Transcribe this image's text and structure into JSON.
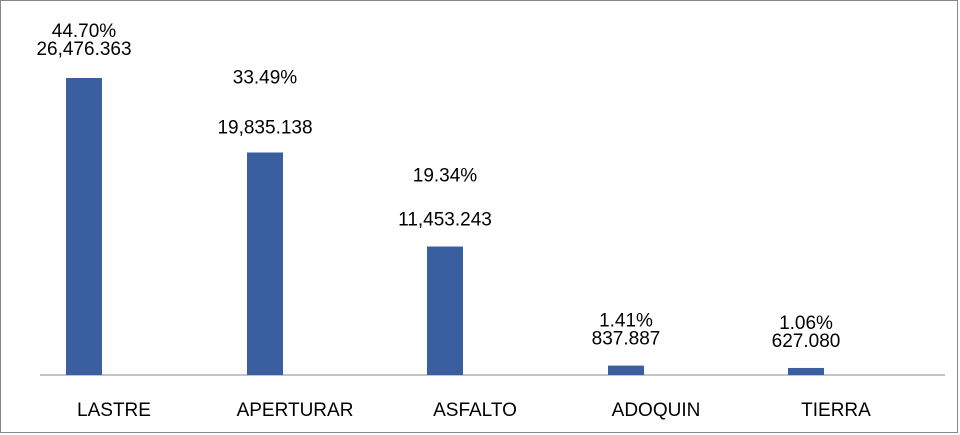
{
  "chart_data": {
    "type": "bar",
    "categories": [
      "LASTRE",
      "APERTURAR",
      "ASFALTO",
      "ADOQUIN",
      "TIERRA"
    ],
    "values": [
      26476.363,
      19835.138,
      11453.243,
      837.887,
      627.08
    ],
    "value_labels": [
      "26,476.363",
      "19,835.138",
      "11,453.243",
      "837.887",
      "627.080"
    ],
    "shares": [
      44.7,
      33.49,
      19.34,
      1.41,
      1.06
    ],
    "share_labels": [
      "44.70%",
      "33.49%",
      "19.34%",
      "1.41%",
      "1.06%"
    ],
    "color": "#3a5fa0"
  }
}
